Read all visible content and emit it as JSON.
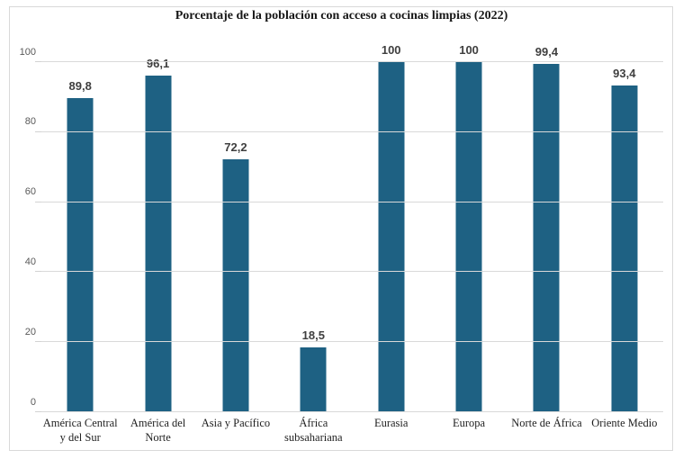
{
  "title": "Porcentaje de la población con acceso a cocinas limpias (2022)",
  "colors": {
    "bar": "#1e6183",
    "gridline": "#d9d9d9",
    "frame_border": "#d9d9d9",
    "y_tick_label": "#595959",
    "value_label": "#3f3f3f",
    "category_label": "#1f1f1f",
    "title_text": "#161616",
    "background": "#ffffff"
  },
  "chart_data": {
    "type": "bar",
    "title": "Porcentaje de la población con acceso a cocinas limpias (2022)",
    "categories": [
      "América Central y del Sur",
      "América del Norte",
      "Asia y Pacífico",
      "África subsahariana",
      "Eurasia",
      "Europa",
      "Norte de África",
      "Oriente Medio"
    ],
    "values": [
      89.8,
      96.1,
      72.2,
      18.5,
      100,
      100,
      99.4,
      93.4
    ],
    "value_labels": [
      "89,8",
      "96,1",
      "72,2",
      "18,5",
      "100",
      "100",
      "99,4",
      "93,4"
    ],
    "xlabel": "",
    "ylabel": "",
    "ylim": [
      0,
      100
    ],
    "yticks": [
      0,
      20,
      40,
      60,
      80,
      100
    ],
    "grid": "horizontal-only",
    "legend": "none",
    "decimal_separator": ","
  }
}
